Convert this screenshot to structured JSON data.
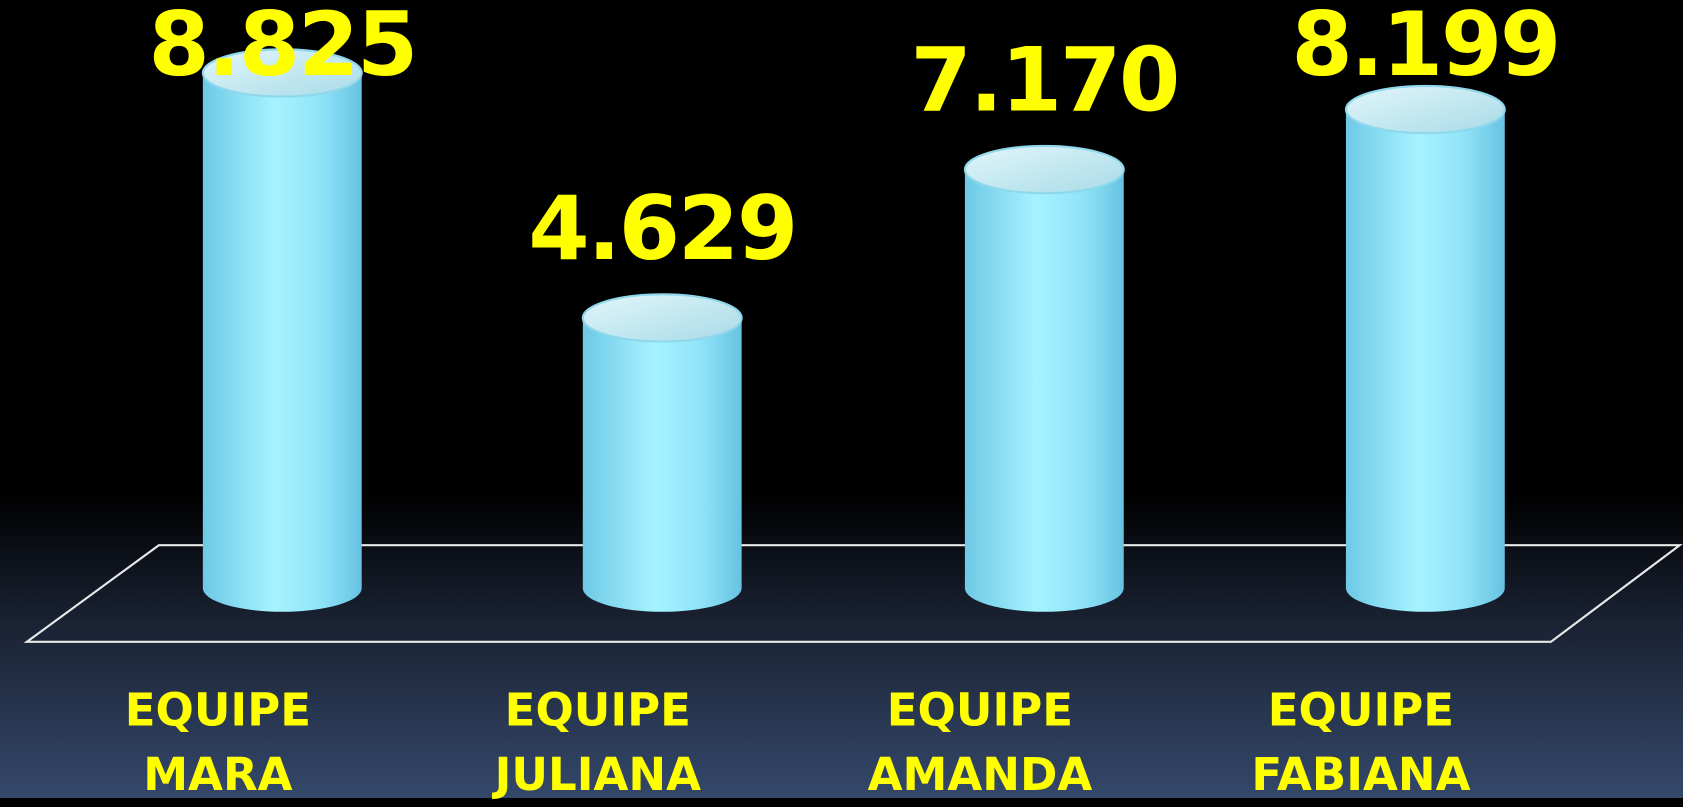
{
  "chart_data": {
    "type": "bar",
    "categories": [
      "EQUIPE MARA",
      "EQUIPE JULIANA",
      "EQUIPE AMANDA",
      "EQUIPE FABIANA"
    ],
    "values": [
      8825,
      4629,
      7170,
      8199
    ],
    "value_labels": [
      "8.825",
      "4.629",
      "7.170",
      "8.199"
    ],
    "color": "#8fe3f7"
  }
}
